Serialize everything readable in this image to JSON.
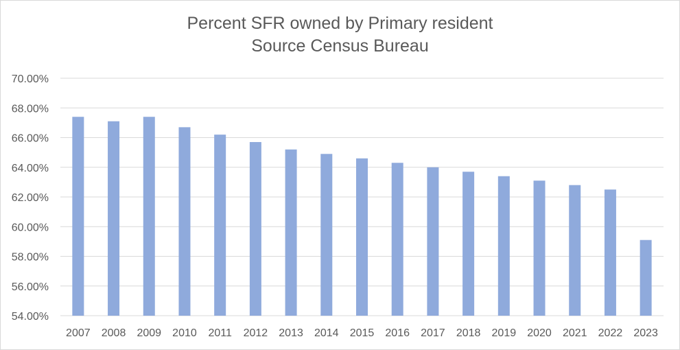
{
  "chart_data": {
    "type": "bar",
    "title": "Percent SFR owned by Primary resident",
    "subtitle": "Source Census Bureau",
    "xlabel": "",
    "ylabel": "",
    "categories": [
      "2007",
      "2008",
      "2009",
      "2010",
      "2011",
      "2012",
      "2013",
      "2014",
      "2015",
      "2016",
      "2017",
      "2018",
      "2019",
      "2020",
      "2021",
      "2022",
      "2023"
    ],
    "values": [
      67.4,
      67.1,
      67.4,
      66.7,
      66.2,
      65.7,
      65.2,
      64.9,
      64.6,
      64.3,
      64.0,
      63.7,
      63.4,
      63.1,
      62.8,
      62.5,
      59.1
    ],
    "ylim": [
      54,
      70
    ],
    "yticks": [
      "54.00%",
      "56.00%",
      "58.00%",
      "60.00%",
      "62.00%",
      "64.00%",
      "66.00%",
      "68.00%",
      "70.00%"
    ],
    "grid": true,
    "legend": "none",
    "bar_color": "#8faadc"
  }
}
